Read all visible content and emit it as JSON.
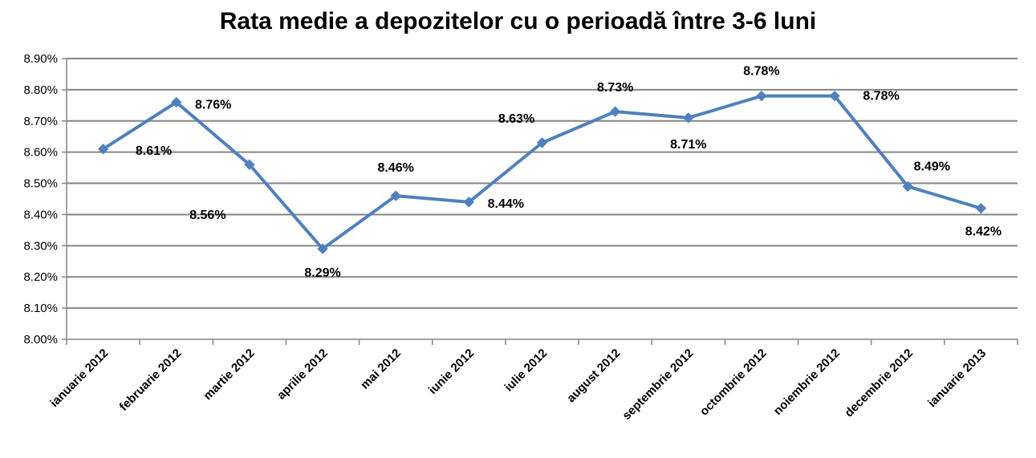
{
  "chart_data": {
    "type": "line",
    "title": "Rata medie a depozitelor cu o perioadă între 3-6 luni",
    "xlabel": "",
    "ylabel": "",
    "categories": [
      "ianuarie 2012",
      "februarie 2012",
      "martie 2012",
      "aprilie 2012",
      "mai 2012",
      "iunie 2012",
      "iulie 2012",
      "august 2012",
      "septembrie 2012",
      "octombrie 2012",
      "noiembrie 2012",
      "decembrie 2012",
      "ianuarie 2013"
    ],
    "series": [
      {
        "values": [
          8.61,
          8.76,
          8.56,
          8.29,
          8.46,
          8.44,
          8.63,
          8.73,
          8.71,
          8.78,
          8.78,
          8.49,
          8.42
        ],
        "labels": [
          "8.61%",
          "8.76%",
          "8.56%",
          "8.29%",
          "8.46%",
          "8.44%",
          "8.63%",
          "8.73%",
          "8.71%",
          "8.78%",
          "8.78%",
          "8.49%",
          "8.42%"
        ],
        "color": "#4F81BD"
      }
    ],
    "ylim": [
      8.0,
      8.9
    ],
    "yticks": [
      "8.00%",
      "8.10%",
      "8.20%",
      "8.30%",
      "8.40%",
      "8.50%",
      "8.60%",
      "8.70%",
      "8.80%",
      "8.90%"
    ],
    "grid": true,
    "legend": "none",
    "colors": {
      "line": "#4F81BD",
      "grid": "#868686",
      "axis": "#868686"
    }
  }
}
